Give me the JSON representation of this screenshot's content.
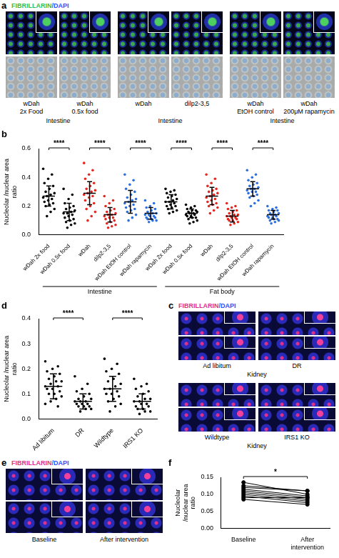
{
  "image_panels": {
    "a": {
      "panel_label": "a",
      "stain": "FIBRILLARIN/DAPI",
      "groups": [
        {
          "images": [
            "wDah 2x Food",
            "wDah 0.5x food"
          ],
          "tissue": "Intestine"
        },
        {
          "images": [
            "wDah",
            "dilp2-3,5"
          ],
          "tissue": "Intestine"
        },
        {
          "images": [
            "wDah EtOH control",
            "wDah 200μM rapamycin"
          ],
          "tissue": "Intestine"
        }
      ]
    },
    "c": {
      "panel_label": "c",
      "stain": "FIBRILLARIN/DAPI",
      "groups": [
        {
          "images": [
            "Ad libitum",
            "DR"
          ],
          "tissue": "Kidney"
        },
        {
          "images": [
            "Wildtype",
            "IRS1 KO"
          ],
          "tissue": "Kidney"
        }
      ]
    },
    "e": {
      "panel_label": "e",
      "stain": "FIBRILLARIN/DAPI",
      "groups": [
        {
          "images": [
            "Baseline",
            "After intervention"
          ]
        }
      ]
    }
  },
  "chart_data": [
    {
      "panel_label": "b",
      "type": "scatter",
      "marker": "circle",
      "grid": false,
      "y_label": "Nucleolar /nuclear area ratio",
      "categories": [
        "wDah 2x food",
        "wDah 0.5x food",
        "wDah",
        "dilp2-3,5",
        "wDah EtOH control",
        "wDah rapamycin",
        "wDah 2x food",
        "wDah 0.5x food",
        "wDah",
        "dilp2-3,5",
        "wDah EtOH control",
        "wDah rapamycin"
      ],
      "colors": [
        "#000000",
        "#000000",
        "#e5261f",
        "#e5261f",
        "#2b6fe0",
        "#2b6fe0",
        "#000000",
        "#000000",
        "#e5261f",
        "#e5261f",
        "#2b6fe0",
        "#2b6fe0"
      ],
      "values": [
        [
          0.46,
          0.42,
          0.39,
          0.36,
          0.34,
          0.32,
          0.3,
          0.29,
          0.28,
          0.27,
          0.26,
          0.25,
          0.24,
          0.23,
          0.22,
          0.21,
          0.2,
          0.18,
          0.16,
          0.13
        ],
        [
          0.32,
          0.28,
          0.25,
          0.22,
          0.2,
          0.19,
          0.18,
          0.17,
          0.16,
          0.15,
          0.15,
          0.14,
          0.13,
          0.12,
          0.11,
          0.1,
          0.09,
          0.08,
          0.07,
          0.05
        ],
        [
          0.5,
          0.45,
          0.42,
          0.39,
          0.36,
          0.34,
          0.32,
          0.31,
          0.3,
          0.29,
          0.28,
          0.27,
          0.26,
          0.24,
          0.22,
          0.2,
          0.18,
          0.16,
          0.13,
          0.1
        ],
        [
          0.27,
          0.24,
          0.22,
          0.2,
          0.18,
          0.17,
          0.16,
          0.15,
          0.14,
          0.14,
          0.13,
          0.12,
          0.12,
          0.11,
          0.1,
          0.09,
          0.08,
          0.07,
          0.06,
          0.05
        ],
        [
          0.42,
          0.38,
          0.35,
          0.32,
          0.3,
          0.28,
          0.26,
          0.25,
          0.24,
          0.23,
          0.22,
          0.21,
          0.2,
          0.19,
          0.18,
          0.17,
          0.16,
          0.14,
          0.12,
          0.1
        ],
        [
          0.24,
          0.22,
          0.2,
          0.19,
          0.18,
          0.17,
          0.16,
          0.15,
          0.15,
          0.14,
          0.14,
          0.13,
          0.13,
          0.12,
          0.12,
          0.11,
          0.11,
          0.1,
          0.1,
          0.09
        ],
        [
          0.32,
          0.31,
          0.3,
          0.29,
          0.28,
          0.27,
          0.26,
          0.25,
          0.24,
          0.23,
          0.23,
          0.22,
          0.21,
          0.2,
          0.2,
          0.19,
          0.18,
          0.17,
          0.16,
          0.15
        ],
        [
          0.21,
          0.2,
          0.19,
          0.18,
          0.17,
          0.17,
          0.16,
          0.16,
          0.15,
          0.15,
          0.14,
          0.14,
          0.13,
          0.13,
          0.12,
          0.12,
          0.11,
          0.1,
          0.09,
          0.08
        ],
        [
          0.42,
          0.39,
          0.36,
          0.34,
          0.32,
          0.31,
          0.3,
          0.29,
          0.28,
          0.27,
          0.26,
          0.25,
          0.24,
          0.23,
          0.22,
          0.21,
          0.2,
          0.19,
          0.17,
          0.15
        ],
        [
          0.22,
          0.2,
          0.19,
          0.18,
          0.17,
          0.16,
          0.15,
          0.14,
          0.14,
          0.13,
          0.13,
          0.12,
          0.12,
          0.11,
          0.11,
          0.1,
          0.1,
          0.09,
          0.08,
          0.07
        ],
        [
          0.45,
          0.42,
          0.4,
          0.38,
          0.36,
          0.35,
          0.34,
          0.33,
          0.32,
          0.32,
          0.31,
          0.3,
          0.3,
          0.29,
          0.28,
          0.27,
          0.26,
          0.24,
          0.22,
          0.2
        ],
        [
          0.2,
          0.19,
          0.18,
          0.17,
          0.17,
          0.16,
          0.15,
          0.15,
          0.14,
          0.14,
          0.13,
          0.13,
          0.12,
          0.12,
          0.11,
          0.11,
          0.1,
          0.1,
          0.09,
          0.08
        ]
      ],
      "mean": [
        0.27,
        0.16,
        0.29,
        0.14,
        0.23,
        0.15,
        0.23,
        0.15,
        0.27,
        0.13,
        0.32,
        0.14
      ],
      "sd": [
        0.07,
        0.06,
        0.08,
        0.05,
        0.08,
        0.04,
        0.05,
        0.03,
        0.06,
        0.04,
        0.05,
        0.03
      ],
      "ylim": [
        0,
        0.6
      ],
      "yticks": [
        {
          "value": 0,
          "label": "0.0"
        },
        0.2,
        0.4,
        0.6
      ],
      "groups": [
        {
          "label": "Intestine",
          "from": 0,
          "to": 5
        },
        {
          "label": "Fat body",
          "from": 6,
          "to": 11
        }
      ],
      "comparisons": [
        {
          "from": 0,
          "to": 1,
          "label": "****"
        },
        {
          "from": 2,
          "to": 3,
          "label": "****"
        },
        {
          "from": 4,
          "to": 5,
          "label": "****"
        },
        {
          "from": 6,
          "to": 7,
          "label": "****"
        },
        {
          "from": 8,
          "to": 9,
          "label": "****"
        },
        {
          "from": 10,
          "to": 11,
          "label": "****"
        }
      ]
    },
    {
      "panel_label": "d",
      "type": "scatter",
      "marker": "circle",
      "grid": false,
      "color": "#000000",
      "y_label": "Nucleolar /nuclear area ratio",
      "categories": [
        "Ad libitum",
        "DR",
        "Wildtype",
        "IRS1 KO"
      ],
      "values": [
        [
          0.23,
          0.21,
          0.2,
          0.19,
          0.18,
          0.17,
          0.16,
          0.15,
          0.15,
          0.14,
          0.13,
          0.13,
          0.12,
          0.12,
          0.11,
          0.1,
          0.1,
          0.09,
          0.08,
          0.07,
          0.06,
          0.05
        ],
        [
          0.17,
          0.14,
          0.12,
          0.11,
          0.1,
          0.09,
          0.08,
          0.08,
          0.07,
          0.07,
          0.07,
          0.06,
          0.06,
          0.06,
          0.05,
          0.05,
          0.05,
          0.04,
          0.04,
          0.03
        ],
        [
          0.24,
          0.22,
          0.2,
          0.19,
          0.18,
          0.16,
          0.15,
          0.14,
          0.13,
          0.12,
          0.12,
          0.11,
          0.1,
          0.1,
          0.09,
          0.08,
          0.07,
          0.06,
          0.05,
          0.03
        ],
        [
          0.16,
          0.14,
          0.13,
          0.12,
          0.11,
          0.1,
          0.09,
          0.08,
          0.08,
          0.07,
          0.07,
          0.06,
          0.06,
          0.05,
          0.05,
          0.04,
          0.04,
          0.03,
          0.03,
          0.02
        ]
      ],
      "mean": [
        0.13,
        0.07,
        0.12,
        0.07
      ],
      "sd": [
        0.05,
        0.03,
        0.05,
        0.03
      ],
      "ylim": [
        0,
        0.4
      ],
      "yticks": [
        {
          "value": 0,
          "label": "0.0"
        },
        0.1,
        0.2,
        0.3,
        0.4
      ],
      "comparisons": [
        {
          "from": 0,
          "to": 1,
          "label": "****"
        },
        {
          "from": 2,
          "to": 3,
          "label": "****"
        }
      ]
    },
    {
      "panel_label": "f",
      "type": "line",
      "marker": "circle",
      "grid": false,
      "color": "#000000",
      "y_label": "Nucleolar /nuclear area ratio",
      "categories": [
        "Baseline",
        "After intervention"
      ],
      "values": [
        [
          0.135,
          0.1
        ],
        [
          0.125,
          0.11
        ],
        [
          0.12,
          0.11
        ],
        [
          0.115,
          0.095
        ],
        [
          0.11,
          0.09
        ],
        [
          0.105,
          0.085
        ],
        [
          0.1,
          0.08
        ],
        [
          0.095,
          0.075
        ],
        [
          0.09,
          0.09
        ],
        [
          0.085,
          0.07
        ]
      ],
      "ylim": [
        0,
        0.15
      ],
      "yticks": [
        {
          "value": 0,
          "label": "0.00"
        },
        0.05,
        {
          "value": 0.1,
          "label": "0.10"
        },
        0.15
      ],
      "comparisons": [
        {
          "from": 0,
          "to": 1,
          "label": "*"
        }
      ]
    }
  ]
}
